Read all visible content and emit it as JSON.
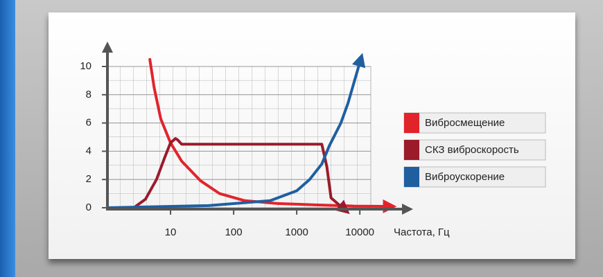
{
  "chart_data": {
    "type": "line",
    "x_label": "Частота, Гц",
    "xscale": "log",
    "xlim": [
      1,
      60000
    ],
    "xticks": [
      10,
      100,
      1000,
      10000
    ],
    "ylim": [
      0,
      11.5
    ],
    "yticks": [
      0,
      2,
      4,
      6,
      8,
      10
    ],
    "grid": true,
    "legend": "right",
    "series": [
      {
        "name": "Вибросмещение",
        "color": "#e3232b",
        "x": [
          4.7,
          5.5,
          7,
          10,
          15,
          30,
          60,
          150,
          500,
          2000,
          8000,
          27000
        ],
        "values": [
          10.5,
          8.5,
          6.3,
          4.6,
          3.3,
          1.9,
          1.0,
          0.5,
          0.3,
          0.2,
          0.12,
          0.1
        ]
      },
      {
        "name": "СКЗ виброскорость",
        "color": "#9b1b2a",
        "x": [
          2.8,
          4,
          6,
          8,
          10,
          12,
          13,
          15,
          100,
          1000,
          2500,
          3000,
          3500,
          5300
        ],
        "values": [
          0.1,
          0.6,
          2.0,
          3.5,
          4.6,
          4.9,
          4.8,
          4.5,
          4.5,
          4.5,
          4.5,
          2.9,
          0.7,
          0
        ]
      },
      {
        "name": "Виброускорение",
        "color": "#1f5fa0",
        "x": [
          1,
          40,
          380,
          1000,
          1600,
          2500,
          3300,
          5000,
          6500,
          10000
        ],
        "values": [
          0,
          0.15,
          0.5,
          1.2,
          2,
          3.1,
          4.4,
          6,
          7.4,
          10.3
        ]
      }
    ]
  }
}
